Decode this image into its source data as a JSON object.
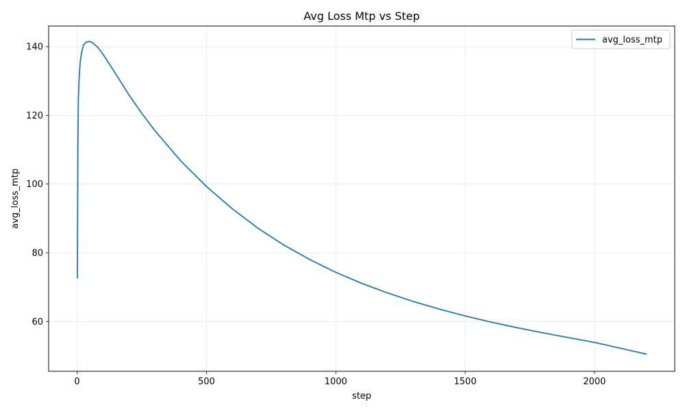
{
  "chart_data": {
    "type": "line",
    "title": "Avg Loss Mtp vs Step",
    "xlabel": "step",
    "ylabel": "avg_loss_mtp",
    "xlim": [
      -110,
      2310
    ],
    "ylim": [
      45.5,
      146
    ],
    "xticks": [
      0,
      500,
      1000,
      1500,
      2000
    ],
    "yticks": [
      60,
      80,
      100,
      120,
      140
    ],
    "grid": true,
    "legend_position": "top-right",
    "series": [
      {
        "name": "avg_loss_mtp",
        "color": "#1f77b4",
        "x": [
          1,
          2,
          3,
          5,
          8,
          12,
          18,
          25,
          35,
          45,
          50,
          60,
          80,
          100,
          150,
          200,
          250,
          300,
          400,
          500,
          600,
          700,
          800,
          900,
          1000,
          1100,
          1200,
          1300,
          1400,
          1500,
          1600,
          1700,
          1800,
          1900,
          2000,
          2100,
          2200
        ],
        "y": [
          72.7,
          90,
          110,
          125,
          131,
          135.5,
          138.5,
          140.5,
          141.3,
          141.5,
          141.5,
          141.1,
          139.8,
          137.8,
          132,
          126,
          120.6,
          115.6,
          106.8,
          99.3,
          92.8,
          87.1,
          82.2,
          78.0,
          74.3,
          71.1,
          68.3,
          65.8,
          63.6,
          61.6,
          59.8,
          58.2,
          56.7,
          55.3,
          53.9,
          52.2,
          50.5
        ]
      }
    ]
  }
}
